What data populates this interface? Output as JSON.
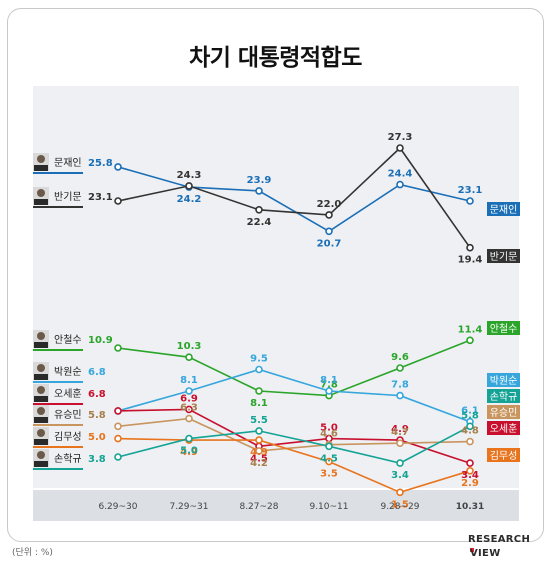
{
  "title": "차기 대통령적합도",
  "unit_label": "(단위 : %)",
  "brand": {
    "line1": "RESEARCH",
    "line2": "VIEW"
  },
  "chart_data": {
    "type": "line",
    "categories": [
      "6.29~30",
      "7.29~31",
      "8.27~28",
      "9.10~11",
      "9.28~29",
      "10.31"
    ],
    "series": [
      {
        "name": "문재인",
        "color": "#1b6fb7",
        "label_color": "#1b6fb7",
        "values": [
          25.8,
          24.2,
          23.9,
          20.7,
          24.4,
          23.1
        ]
      },
      {
        "name": "반기문",
        "color": "#333333",
        "label_color": "#333333",
        "values": [
          23.1,
          24.3,
          22.4,
          22.0,
          27.3,
          19.4
        ]
      },
      {
        "name": "안철수",
        "color": "#2aa52a",
        "label_color": "#2aa52a",
        "values": [
          10.9,
          10.3,
          8.1,
          7.8,
          9.6,
          11.4
        ]
      },
      {
        "name": "박원순",
        "color": "#36a6dc",
        "label_color": "#36a6dc",
        "values": [
          6.8,
          8.1,
          9.5,
          8.1,
          7.8,
          6.1
        ]
      },
      {
        "name": "오세훈",
        "color": "#c8102e",
        "label_color": "#c8102e",
        "values": [
          6.8,
          6.9,
          4.5,
          5.0,
          4.9,
          3.4
        ]
      },
      {
        "name": "유승민",
        "color": "#c8955e",
        "label_color": "#a87f4e",
        "values": [
          5.8,
          6.3,
          4.2,
          4.6,
          4.7,
          4.8
        ]
      },
      {
        "name": "김무성",
        "color": "#e8741e",
        "label_color": "#e8741e",
        "values": [
          5.0,
          4.9,
          4.9,
          3.5,
          1.5,
          2.9
        ]
      },
      {
        "name": "손학규",
        "color": "#14a394",
        "label_color": "#14a394",
        "values": [
          3.8,
          5.0,
          5.5,
          4.5,
          3.4,
          5.8
        ]
      }
    ],
    "band_ylim": [
      0,
      12
    ],
    "upper_ylim": [
      19,
      28
    ]
  }
}
